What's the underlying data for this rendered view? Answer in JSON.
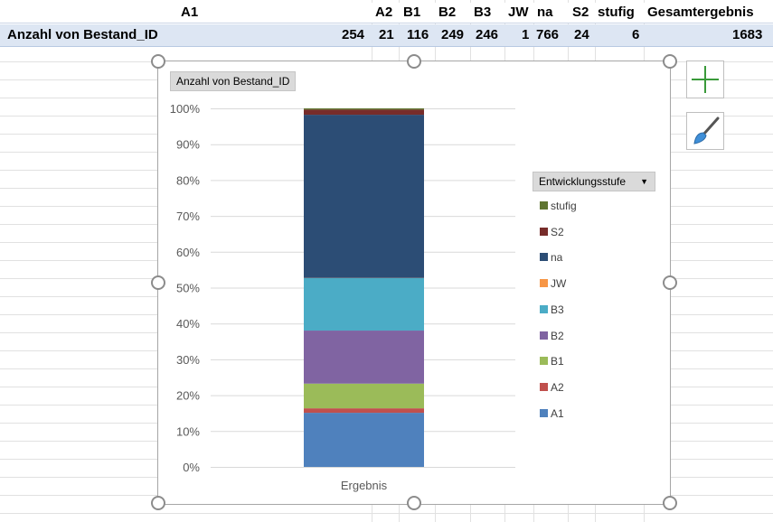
{
  "sheet": {
    "header": {
      "row_label": "A1",
      "columns": [
        "A2",
        "B1",
        "B2",
        "B3",
        "JW",
        "na",
        "S2",
        "stufig",
        "Gesamtergebnis"
      ]
    },
    "data_row": {
      "label": "Anzahl von Bestand_ID",
      "values": [
        "254",
        "21",
        "116",
        "249",
        "246",
        "1",
        "766",
        "24",
        "6",
        "1683"
      ]
    }
  },
  "chart": {
    "value_field_button": "Anzahl von Bestand_ID",
    "legend_field_button": "Entwicklungsstufe",
    "dropdown_icon": "caret-down-icon"
  },
  "side_buttons": {
    "elements_icon": "plus-icon",
    "styles_icon": "brush-icon"
  },
  "chart_data": {
    "type": "bar",
    "stacked": "percent",
    "categories": [
      "Ergebnis"
    ],
    "ylim": [
      0,
      100
    ],
    "yticks": [
      "0%",
      "10%",
      "20%",
      "30%",
      "40%",
      "50%",
      "60%",
      "70%",
      "80%",
      "90%",
      "100%"
    ],
    "series": [
      {
        "name": "A1",
        "color": "#4f81bd",
        "values": [
          254
        ]
      },
      {
        "name": "A2",
        "color": "#c0504d",
        "values": [
          21
        ]
      },
      {
        "name": "B1",
        "color": "#9bbb59",
        "values": [
          116
        ]
      },
      {
        "name": "B2",
        "color": "#8064a2",
        "values": [
          249
        ]
      },
      {
        "name": "B3",
        "color": "#4bacc6",
        "values": [
          246
        ]
      },
      {
        "name": "JW",
        "color": "#f79646",
        "values": [
          1
        ]
      },
      {
        "name": "na",
        "color": "#2c4d75",
        "values": [
          766
        ]
      },
      {
        "name": "S2",
        "color": "#772c2a",
        "values": [
          24
        ]
      },
      {
        "name": "stufig",
        "color": "#5f7530",
        "values": [
          6
        ]
      }
    ],
    "legend_position": "right",
    "grid": true
  }
}
